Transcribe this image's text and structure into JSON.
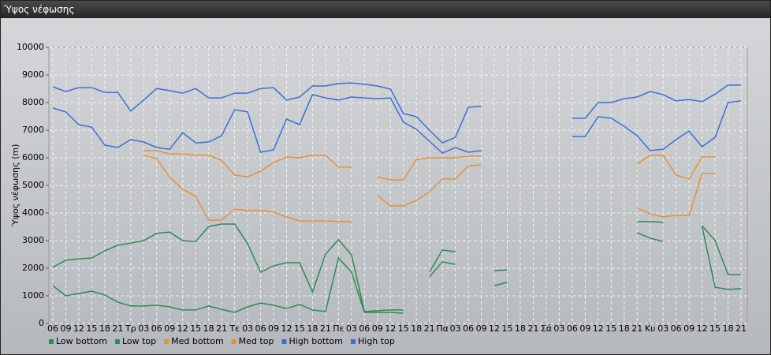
{
  "window_title": "Ύψος νέφωσης",
  "chart_data": {
    "type": "line",
    "y_label": "Ύψος νέφωσης (m)",
    "categories": [
      "06",
      "09",
      "12",
      "15",
      "18",
      "21",
      "Τρ",
      "03",
      "06",
      "09",
      "12",
      "15",
      "18",
      "21",
      "Τε",
      "03",
      "06",
      "09",
      "12",
      "15",
      "18",
      "21",
      "Πε",
      "03",
      "06",
      "09",
      "12",
      "15",
      "18",
      "21",
      "Πα",
      "03",
      "06",
      "09",
      "12",
      "15",
      "18",
      "21",
      "Σά",
      "03",
      "06",
      "09",
      "12",
      "15",
      "18",
      "21",
      "Κυ",
      "03",
      "06",
      "09",
      "12",
      "15",
      "18",
      "21"
    ],
    "ylim": [
      0,
      10000
    ],
    "yticks": [
      0,
      1000,
      2000,
      3000,
      4000,
      5000,
      6000,
      7000,
      8000,
      9000,
      10000
    ],
    "grid": true,
    "legend": "bottom-left",
    "series": [
      {
        "name": "Low bottom",
        "color": "#2e8b57",
        "values": [
          1370,
          1000,
          1085,
          1170,
          1030,
          770,
          630,
          630,
          660,
          600,
          490,
          490,
          630,
          510,
          400,
          600,
          740,
          660,
          540,
          690,
          490,
          430,
          2370,
          1860,
          400,
          400,
          400,
          370,
          null,
          1690,
          2230,
          2140,
          null,
          null,
          1370,
          1490,
          null,
          null,
          null,
          null,
          null,
          null,
          null,
          null,
          null,
          3290,
          3090,
          2970,
          null,
          null,
          3510,
          1310,
          1230,
          1260
        ]
      },
      {
        "name": "Low top",
        "color": "#2e8b57",
        "values": [
          2030,
          2290,
          2340,
          2370,
          2630,
          2830,
          2910,
          3000,
          3260,
          3310,
          3000,
          2970,
          3510,
          3600,
          3600,
          2890,
          1860,
          2090,
          2200,
          2200,
          1140,
          2510,
          3030,
          2490,
          430,
          460,
          490,
          490,
          null,
          1860,
          2660,
          2600,
          null,
          null,
          1910,
          1940,
          null,
          null,
          null,
          null,
          null,
          null,
          null,
          null,
          null,
          3690,
          3690,
          3660,
          null,
          null,
          3540,
          3000,
          1770,
          1770
        ]
      },
      {
        "name": "Med bottom",
        "color": "#e69138",
        "values": [
          null,
          null,
          null,
          null,
          null,
          null,
          null,
          6090,
          5970,
          5290,
          4860,
          4600,
          3740,
          3740,
          4140,
          4090,
          4090,
          4030,
          3860,
          3710,
          3710,
          3710,
          3690,
          3690,
          null,
          4630,
          4260,
          4260,
          4460,
          4770,
          5230,
          5230,
          5710,
          5740,
          null,
          null,
          null,
          null,
          null,
          null,
          null,
          null,
          null,
          null,
          null,
          4170,
          3970,
          3860,
          3910,
          3910,
          5430,
          5430,
          null,
          null
        ]
      },
      {
        "name": "Med top",
        "color": "#e69138",
        "values": [
          null,
          null,
          null,
          null,
          null,
          null,
          null,
          6260,
          6260,
          6140,
          6140,
          6090,
          6090,
          5910,
          5370,
          5310,
          5510,
          5830,
          6030,
          6000,
          6090,
          6090,
          5660,
          5660,
          null,
          5310,
          5200,
          5200,
          5940,
          6000,
          6000,
          6000,
          6060,
          6060,
          null,
          null,
          null,
          null,
          null,
          null,
          null,
          null,
          null,
          null,
          null,
          5770,
          6090,
          6090,
          5370,
          5230,
          6030,
          6030,
          null,
          null
        ]
      },
      {
        "name": "High bottom",
        "color": "#3c6fd6",
        "values": [
          7800,
          7660,
          7200,
          7110,
          6460,
          6370,
          6660,
          6570,
          6370,
          6310,
          6910,
          6540,
          6570,
          6800,
          7740,
          7660,
          6200,
          6290,
          7400,
          7200,
          8290,
          8170,
          8090,
          8200,
          8170,
          8140,
          8170,
          7290,
          7030,
          6600,
          6170,
          6370,
          6200,
          6260,
          null,
          null,
          null,
          null,
          null,
          null,
          6770,
          6770,
          7490,
          7430,
          7140,
          6800,
          6260,
          6310,
          6660,
          6970,
          6400,
          6740,
          8000,
          8060
        ]
      },
      {
        "name": "High top",
        "color": "#3c6fd6",
        "values": [
          8570,
          8400,
          8540,
          8540,
          8370,
          8370,
          7690,
          8090,
          8510,
          8430,
          8340,
          8510,
          8170,
          8170,
          8340,
          8340,
          8510,
          8540,
          8090,
          8200,
          8600,
          8600,
          8690,
          8710,
          8660,
          8600,
          8490,
          7600,
          7490,
          7000,
          6540,
          6740,
          7830,
          7860,
          null,
          null,
          null,
          null,
          null,
          null,
          7430,
          7430,
          8000,
          8000,
          8140,
          8200,
          8400,
          8290,
          8060,
          8110,
          8030,
          8310,
          8630,
          8630
        ]
      }
    ]
  }
}
